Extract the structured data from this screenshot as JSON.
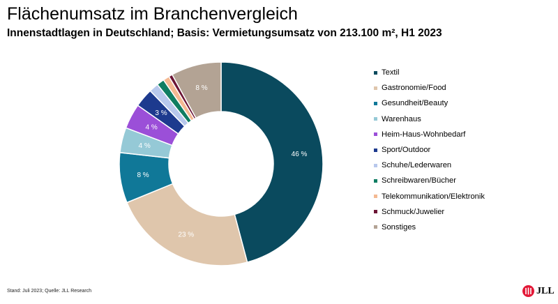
{
  "header": {
    "title": "Flächenumsatz im Branchenvergleich",
    "subtitle": "Innenstadtlagen in Deutschland; Basis: Vermietungsumsatz von 213.100 m², H1 2023"
  },
  "footer": {
    "source": "Stand: Juli 2023; Quelle: JLL Research"
  },
  "logo": {
    "text": "JLL",
    "color": "#e31837"
  },
  "chart_data": {
    "type": "pie",
    "donut": true,
    "title": "Flächenumsatz im Branchenvergleich",
    "subtitle": "Innenstadtlagen in Deutschland; Basis: Vermietungsumsatz von 213.100 m², H1 2023",
    "unit": "%",
    "legend_position": "right",
    "categories": [
      "Textil",
      "Gastronomie/Food",
      "Gesundheit/Beauty",
      "Warenhaus",
      "Heim-Haus-Wohnbedarf",
      "Sport/Outdoor",
      "Schuhe/Lederwaren",
      "Schreibwaren/Bücher",
      "Telekommunikation/Elektronik",
      "Schmuck/Juwelier",
      "Sonstiges"
    ],
    "values": [
      46,
      23,
      8,
      4,
      4,
      3,
      1.5,
      1.2,
      1,
      0.6,
      8
    ],
    "data_labels": [
      "46 %",
      "23 %",
      "8 %",
      "4 %",
      "4 %",
      "3 %",
      "",
      "",
      "",
      "",
      "8 %"
    ],
    "colors": [
      "#0a4a5e",
      "#dfc6ac",
      "#107898",
      "#95c9d6",
      "#9b4fd8",
      "#1d3a8e",
      "#b8c8ec",
      "#0f7d62",
      "#f4b992",
      "#6b1535",
      "#b3a394"
    ]
  }
}
